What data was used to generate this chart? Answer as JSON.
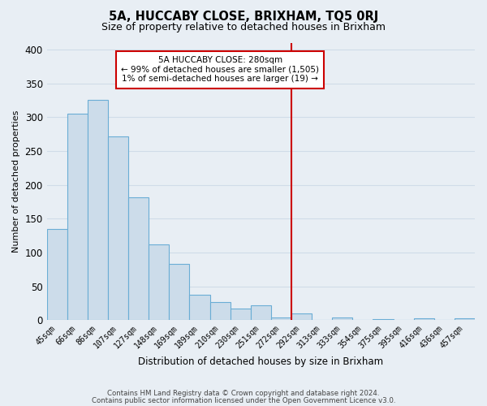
{
  "title": "5A, HUCCABY CLOSE, BRIXHAM, TQ5 0RJ",
  "subtitle": "Size of property relative to detached houses in Brixham",
  "xlabel": "Distribution of detached houses by size in Brixham",
  "ylabel": "Number of detached properties",
  "bar_labels": [
    "45sqm",
    "66sqm",
    "86sqm",
    "107sqm",
    "127sqm",
    "148sqm",
    "169sqm",
    "189sqm",
    "210sqm",
    "230sqm",
    "251sqm",
    "272sqm",
    "292sqm",
    "313sqm",
    "333sqm",
    "354sqm",
    "375sqm",
    "395sqm",
    "416sqm",
    "436sqm",
    "457sqm"
  ],
  "bar_heights": [
    135,
    305,
    325,
    272,
    182,
    112,
    83,
    37,
    27,
    17,
    22,
    4,
    10,
    0,
    4,
    0,
    1,
    0,
    3,
    0,
    3
  ],
  "bar_color": "#ccdcea",
  "bar_edgecolor": "#6aadd5",
  "vline_color": "#cc0000",
  "annotation_title": "5A HUCCABY CLOSE: 280sqm",
  "annotation_line1": "← 99% of detached houses are smaller (1,505)",
  "annotation_line2": "1% of semi-detached houses are larger (19) →",
  "annotation_box_facecolor": "#ffffff",
  "annotation_box_edgecolor": "#cc0000",
  "ylim": [
    0,
    410
  ],
  "yticks": [
    0,
    50,
    100,
    150,
    200,
    250,
    300,
    350,
    400
  ],
  "footer_line1": "Contains HM Land Registry data © Crown copyright and database right 2024.",
  "footer_line2": "Contains public sector information licensed under the Open Government Licence v3.0.",
  "background_color": "#e8eef4",
  "grid_color": "#d0dce8"
}
